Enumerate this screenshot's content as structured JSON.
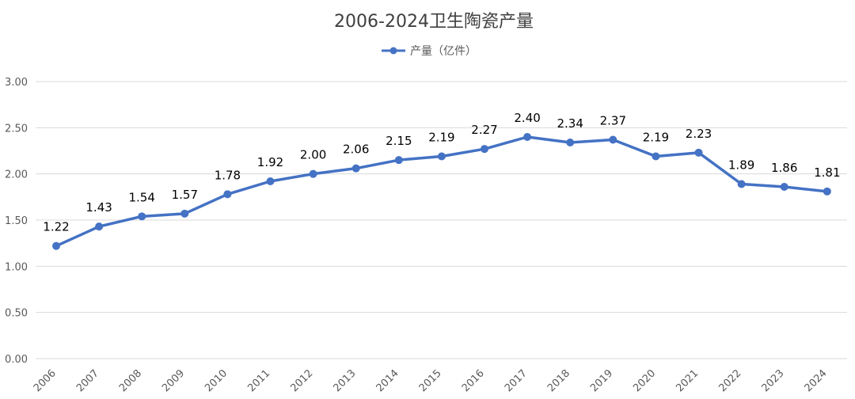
{
  "chart_data": {
    "type": "line",
    "title": "2006-2024卫生陶瓷产量",
    "xlabel": "",
    "ylabel": "",
    "categories": [
      "2006",
      "2007",
      "2008",
      "2009",
      "2010",
      "2011",
      "2012",
      "2013",
      "2014",
      "2015",
      "2016",
      "2017",
      "2018",
      "2019",
      "2020",
      "2021",
      "2022",
      "2023",
      "2024"
    ],
    "series": [
      {
        "name": "产量（亿件）",
        "values": [
          1.22,
          1.43,
          1.54,
          1.57,
          1.78,
          1.92,
          2.0,
          2.06,
          2.15,
          2.19,
          2.27,
          2.4,
          2.34,
          2.37,
          2.19,
          2.23,
          1.89,
          1.86,
          1.81
        ],
        "data_labels": [
          "1.22",
          "1.43",
          "1.54",
          "1.57",
          "1.78",
          "1.92",
          "2.00",
          "2.06",
          "2.15",
          "2.19",
          "2.27",
          "2.40",
          "2.34",
          "2.37",
          "2.19",
          "2.23",
          "1.89",
          "1.86",
          "1.81"
        ],
        "color": "#4472c4"
      }
    ],
    "ylim": [
      0,
      3
    ],
    "yticks": [
      0,
      0.5,
      1,
      1.5,
      2,
      2.5,
      3
    ],
    "ytick_labels": [
      "0.00",
      "0.50",
      "1.00",
      "1.50",
      "2.00",
      "2.50",
      "3.00"
    ],
    "grid": true,
    "legend_position": "top",
    "gridline_color": "#d9d9d9",
    "text_color": "#595959"
  }
}
